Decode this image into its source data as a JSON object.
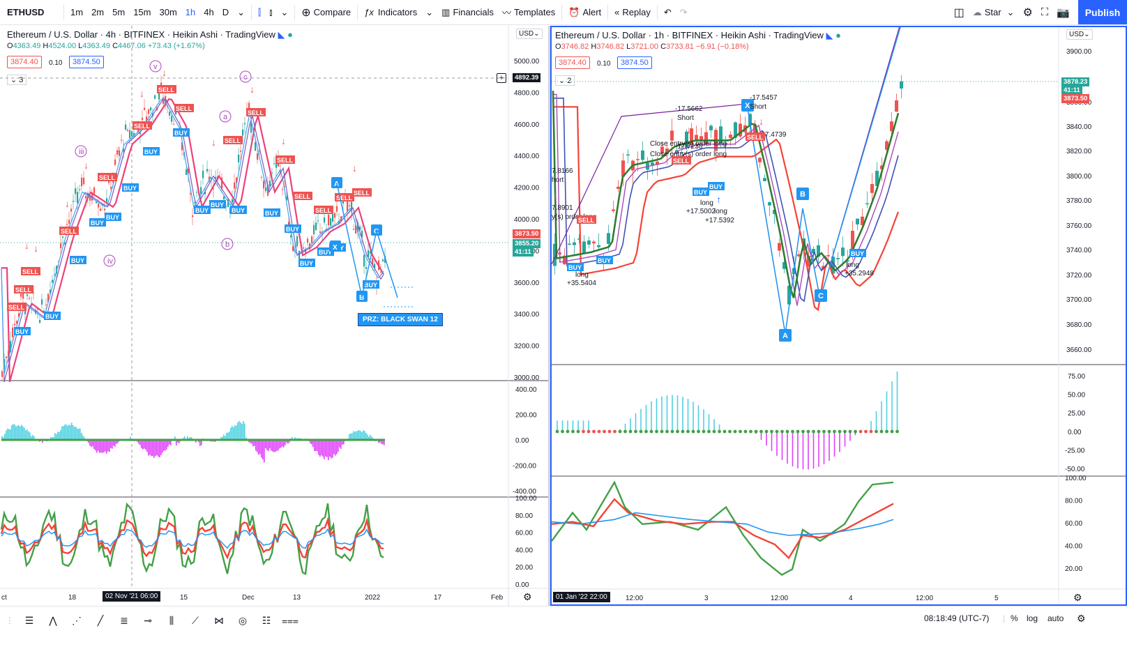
{
  "toolbar": {
    "symbol": "ETHUSD",
    "timeframes": [
      "1m",
      "2m",
      "5m",
      "15m",
      "30m",
      "1h",
      "4h",
      "D"
    ],
    "active_timeframe": "1h",
    "compare": "Compare",
    "indicators": "Indicators",
    "financials": "Financials",
    "templates": "Templates",
    "alert": "Alert",
    "replay": "Replay",
    "layout_name": "Star",
    "publish": "Publish"
  },
  "left": {
    "legend": "Ethereum / U.S. Dollar · 4h · BITFINEX · Heikin Ashi · TradingView",
    "ohlc": {
      "o": "4363.49",
      "h": "4524.00",
      "l": "4363.49",
      "c": "4467.06",
      "chg": "+73.43 (+1.67%)"
    },
    "sell_price": "3874.40",
    "spread": "0.10",
    "buy_price": "3874.50",
    "collapse": "3",
    "currency": "USD",
    "price_axis": [
      "5000.00",
      "4800.00",
      "4600.00",
      "4400.00",
      "4200.00",
      "4000.00",
      "3800.00",
      "3600.00",
      "3400.00",
      "3200.00",
      "3000.00"
    ],
    "crosshair_price": "4892.39",
    "last_price": "3873.50",
    "other_price": "3855.20",
    "countdown": "41:11",
    "osc_axis": [
      "400.00",
      "200.00",
      "0.00",
      "-200.00",
      "-400.00"
    ],
    "rsi_axis": [
      "100.00",
      "80.00",
      "60.00",
      "40.00",
      "20.00",
      "0.00"
    ],
    "time_axis": [
      "ct",
      "18",
      "15",
      "Dec",
      "13",
      "2022",
      "17",
      "Feb"
    ],
    "time_cursor": "02 Nov '21   06:00",
    "prz_label": "PRZ: BLACK SWAN 12",
    "wave_labels": [
      "v",
      "c",
      "a",
      "b",
      "iii",
      "iv"
    ],
    "pattern_labels": [
      "A",
      "B",
      "C",
      "X"
    ]
  },
  "right": {
    "legend": "Ethereum / U.S. Dollar · 1h · BITFINEX · Heikin Ashi · TradingView",
    "ohlc": {
      "o": "3746.82",
      "h": "3746.82",
      "l": "3721.00",
      "c": "3733.81",
      "chg": "−6.91 (−0.18%)"
    },
    "sell_price": "3874.40",
    "spread": "0.10",
    "buy_price": "3874.50",
    "collapse": "2",
    "currency": "USD",
    "price_axis": [
      "3900.00",
      "3860.00",
      "3840.00",
      "3820.00",
      "3800.00",
      "3780.00",
      "3760.00",
      "3740.00",
      "3720.00",
      "3700.00",
      "3680.00",
      "3660.00"
    ],
    "last_price": "3878.23",
    "countdown": "41:11",
    "other_price": "3873.50",
    "osc_axis": [
      "75.00",
      "50.00",
      "25.00",
      "0.00",
      "-25.00",
      "-50.00"
    ],
    "rsi_axis": [
      "100.00",
      "80.00",
      "60.00",
      "40.00",
      "20.00"
    ],
    "time_axis": [
      "12:00",
      "3",
      "12:00",
      "4",
      "12:00",
      "5"
    ],
    "time_cursor": "01 Jan '22   22:00",
    "annotations": [
      "-17.5662",
      "Short",
      "-17.5457",
      "Short",
      "-17.4739",
      "Close entry(s) order long",
      "-17.7238",
      "Close entry(s) order long",
      "long",
      "+17.5002",
      "long",
      "+17.5392",
      "7.8166",
      "hort",
      "7.8901",
      "y(s) order long",
      "long",
      "+35.5404",
      "long",
      "+35.2948"
    ],
    "pattern_labels": [
      "A",
      "B",
      "C",
      "X"
    ]
  },
  "status": {
    "clock": "08:18:49 (UTC-7)",
    "percent": "%",
    "log": "log",
    "auto": "auto"
  },
  "colors": {
    "accent": "#2962ff",
    "up": "#26a69a",
    "down": "#ef5350",
    "rsi_green": "#43a047",
    "rsi_red": "#f44336",
    "rsi_blue": "#2196f3",
    "osc_pos": "#4dd0e1",
    "osc_neg": "#e040fb"
  }
}
